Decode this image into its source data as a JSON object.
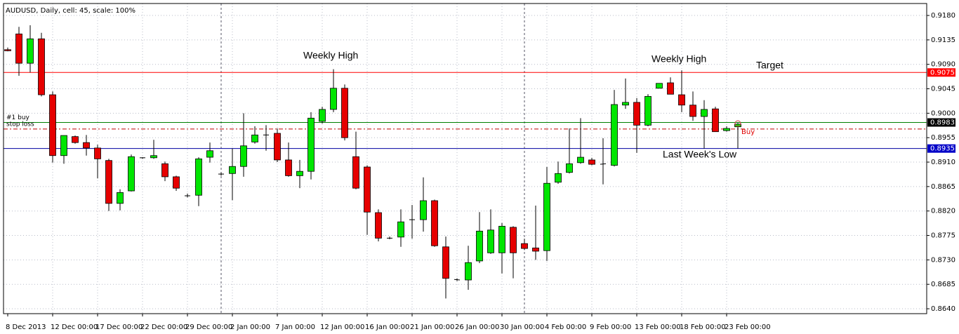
{
  "chart_data": {
    "type": "candlestick",
    "title": "AUDUSD, Daily, cell: 45, scale: 100%",
    "categories": [
      "8 Dec 2013",
      null,
      null,
      null,
      "12 Dec 00:00",
      null,
      null,
      null,
      "17 Dec 00:00",
      null,
      null,
      null,
      "22 Dec 00:00",
      null,
      null,
      null,
      "29 Dec 00:00",
      null,
      null,
      null,
      "2 Jan 00:00",
      null,
      null,
      null,
      "7 Jan 00:00",
      null,
      null,
      null,
      "12 Jan 00:00",
      null,
      null,
      null,
      "16 Jan 00:00",
      null,
      null,
      null,
      "21 Jan 00:00",
      null,
      null,
      null,
      "26 Jan 00:00",
      null,
      null,
      null,
      "30 Jan 00:00",
      null,
      null,
      null,
      "4 Feb 00:00",
      null,
      null,
      null,
      "9 Feb 00:00",
      null,
      null,
      null,
      "13 Feb 00:00",
      null,
      null,
      null,
      "18 Feb 00:00",
      null,
      null,
      null,
      "23 Feb 00:00",
      null
    ],
    "open": [
      0.9117,
      0.9146,
      0.9092,
      0.9137,
      0.9034,
      0.8922,
      0.8957,
      0.8946,
      0.8936,
      0.8913,
      0.8834,
      0.8857,
      0.8918,
      0.8918,
      0.8907,
      0.8883,
      0.8848,
      0.8849,
      0.8919,
      0.8888,
      0.8889,
      0.8902,
      0.8947,
      0.896,
      0.8963,
      0.8914,
      0.8885,
      0.8893,
      0.8985,
      0.9007,
      0.9046,
      0.892,
      0.8901,
      0.8817,
      0.877,
      0.8772,
      0.8804,
      0.8804,
      0.8839,
      0.8754,
      0.8694,
      0.8693,
      0.8728,
      0.8743,
      0.8743,
      0.879,
      0.876,
      0.8752,
      0.8747,
      0.8873,
      0.8891,
      0.8909,
      0.8914,
      0.8906,
      0.8904,
      0.9015,
      0.902,
      0.8978,
      0.9046,
      0.9056,
      0.9034,
      0.9015,
      0.8994,
      0.9008,
      0.8968,
      0.8975
    ],
    "high": [
      0.9121,
      0.9159,
      0.9162,
      0.9148,
      0.904,
      0.8959,
      0.8959,
      0.896,
      0.8942,
      0.8916,
      0.886,
      0.8924,
      0.8919,
      0.8951,
      0.8911,
      0.8885,
      0.8852,
      0.8919,
      0.8946,
      0.8891,
      0.8935,
      0.9,
      0.8976,
      0.8978,
      0.8972,
      0.8946,
      0.8914,
      0.9002,
      0.9012,
      0.9081,
      0.9053,
      0.8966,
      0.8904,
      0.8823,
      0.8773,
      0.8823,
      0.8831,
      0.8882,
      0.8841,
      0.8773,
      0.8696,
      0.8756,
      0.8818,
      0.8823,
      0.8798,
      0.8792,
      0.8769,
      0.883,
      0.8901,
      0.8911,
      0.8972,
      0.8991,
      0.8918,
      0.8954,
      0.9043,
      0.9064,
      0.9028,
      0.9035,
      0.9055,
      0.9066,
      0.9079,
      0.904,
      0.9024,
      0.9012,
      0.8976,
      0.8982
    ],
    "low": [
      0.9114,
      0.9069,
      0.9075,
      0.9031,
      0.8909,
      0.8907,
      0.8944,
      0.8922,
      0.888,
      0.882,
      0.8821,
      0.8856,
      0.8916,
      0.8916,
      0.8875,
      0.8857,
      0.8845,
      0.8829,
      0.8909,
      0.8885,
      0.884,
      0.8883,
      0.8944,
      0.8931,
      0.891,
      0.8883,
      0.8862,
      0.8878,
      0.8981,
      0.9002,
      0.895,
      0.886,
      0.8776,
      0.8764,
      0.8768,
      0.8754,
      0.8769,
      0.8782,
      0.8754,
      0.8659,
      0.8691,
      0.8675,
      0.8724,
      0.8741,
      0.8705,
      0.8696,
      0.8748,
      0.873,
      0.8728,
      0.887,
      0.8889,
      0.8907,
      0.8904,
      0.8869,
      0.8902,
      0.9008,
      0.8927,
      0.8976,
      0.9046,
      0.9035,
      0.9002,
      0.8986,
      0.8935,
      0.8966,
      0.8966,
      0.8935
    ],
    "close": [
      0.9115,
      0.9092,
      0.9137,
      0.9034,
      0.8922,
      0.8959,
      0.8946,
      0.8936,
      0.8916,
      0.8834,
      0.8854,
      0.892,
      0.8918,
      0.8922,
      0.8883,
      0.8862,
      0.8848,
      0.8916,
      0.8931,
      0.8888,
      0.8902,
      0.894,
      0.896,
      0.896,
      0.8914,
      0.8885,
      0.8893,
      0.8991,
      0.9007,
      0.9046,
      0.8955,
      0.8862,
      0.8818,
      0.877,
      0.877,
      0.88,
      0.8804,
      0.8839,
      0.8756,
      0.8696,
      0.8693,
      0.8725,
      0.8783,
      0.8785,
      0.8792,
      0.8743,
      0.8751,
      0.8746,
      0.8871,
      0.8889,
      0.8907,
      0.8919,
      0.8906,
      0.8907,
      0.9016,
      0.902,
      0.8978,
      0.9031,
      0.9055,
      0.9035,
      0.9015,
      0.8994,
      0.9007,
      0.8966,
      0.8972,
      0.898
    ],
    "up_color": "#00e600",
    "down_color": "#e60000",
    "ylim": [
      0.8631,
      0.9202
    ],
    "yticks": [
      {
        "value": 0.918,
        "label": "0.9180"
      },
      {
        "value": 0.9135,
        "label": "0.9135"
      },
      {
        "value": 0.909,
        "label": "0.9090"
      },
      {
        "value": 0.9045,
        "label": "0.9045"
      },
      {
        "value": 0.9,
        "label": "0.9000"
      },
      {
        "value": 0.8955,
        "label": "0.8955"
      },
      {
        "value": 0.891,
        "label": "0.8910"
      },
      {
        "value": 0.8865,
        "label": "0.8865"
      },
      {
        "value": 0.882,
        "label": "0.8820"
      },
      {
        "value": 0.8775,
        "label": "0.8775"
      },
      {
        "value": 0.873,
        "label": "0.8730"
      },
      {
        "value": 0.8685,
        "label": "0.8685"
      },
      {
        "value": 0.864,
        "label": "0.8640"
      }
    ],
    "grid": true,
    "levels": [
      {
        "value": 0.9075,
        "label": "0.9075",
        "color": "#ff0000",
        "label_bg": "#ff0000",
        "label_color": "#ffffff"
      },
      {
        "name": "#1 buy",
        "value": 0.8983,
        "label": "0.8983",
        "color": "#008000",
        "label_bg": "#000000",
        "label_color": "#ffffff"
      },
      {
        "name": "stop loss",
        "value": 0.8971,
        "color": "#c00000",
        "dashed": true
      },
      {
        "value": 0.8935,
        "label": "0.8935",
        "color": "#0000a0",
        "label_bg": "#0000c8",
        "label_color": "#ffffff"
      }
    ],
    "annotations": [
      "Weekly High",
      "Weekly High",
      "Target",
      "Last Week's Low",
      "Buy"
    ]
  }
}
